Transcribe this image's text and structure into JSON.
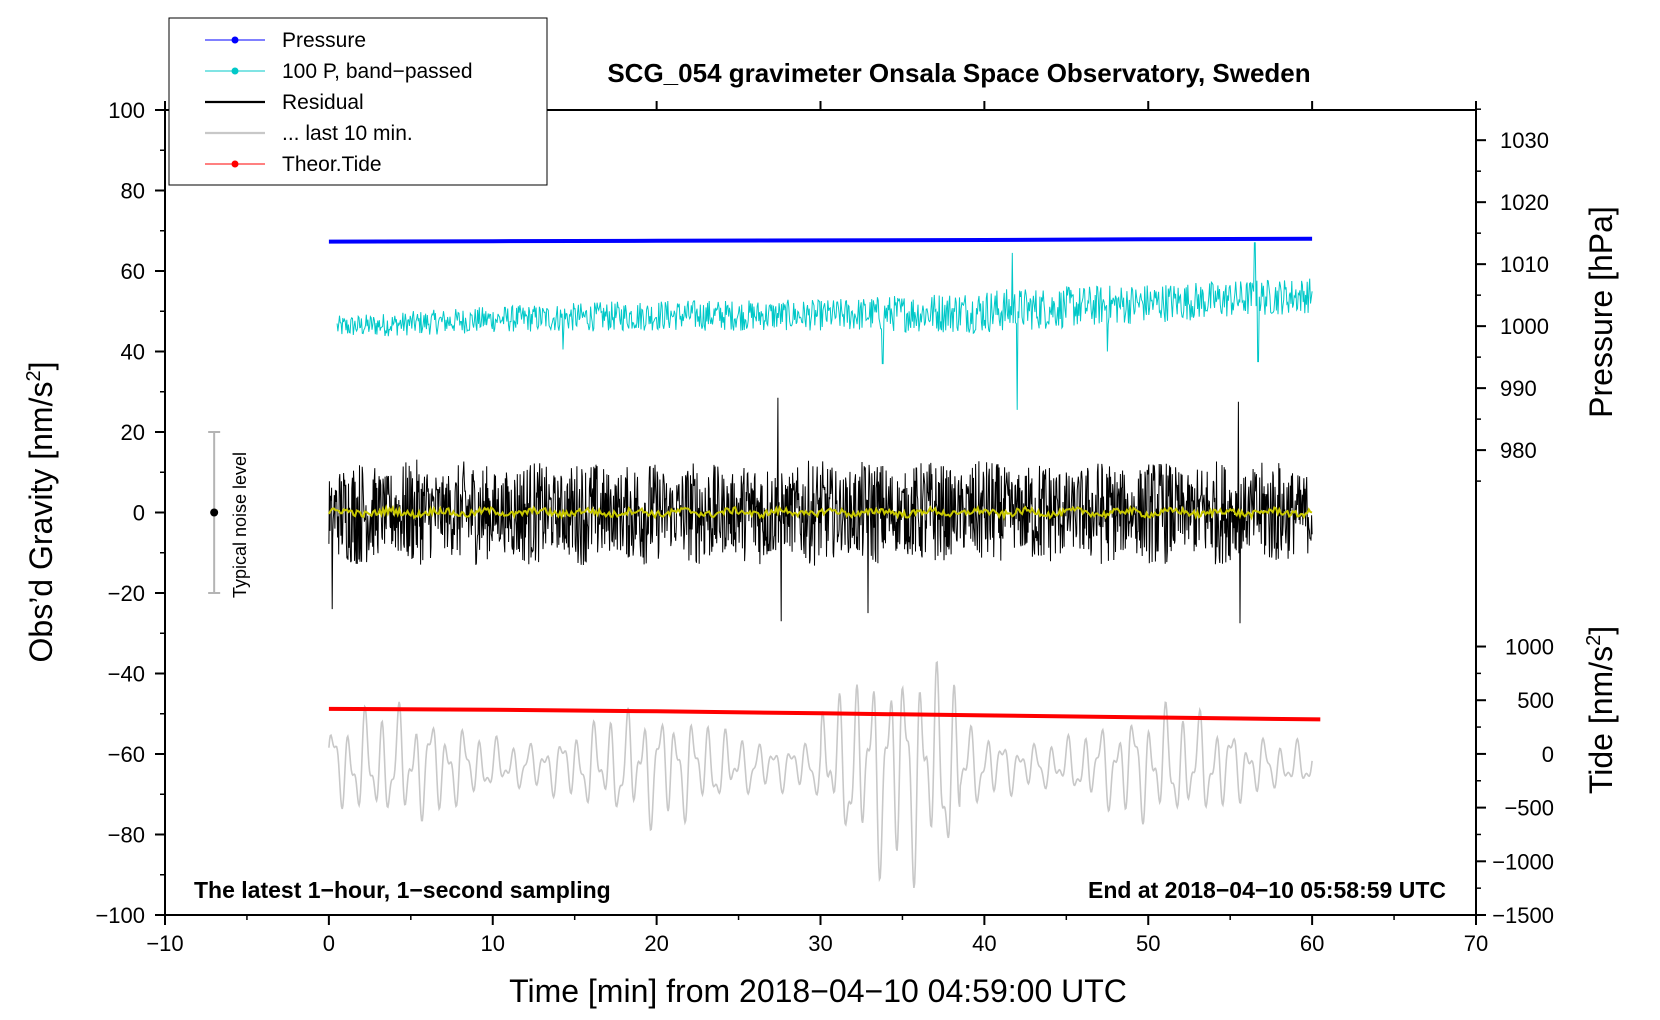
{
  "chart_data": {
    "type": "line",
    "title": "SCG_054 gravimeter Onsala Space Observatory, Sweden",
    "xlabel": "Time [min] from 2018−04−10 04:59:00 UTC",
    "ylabel_left": "Obs’d Gravity [nm/s²]",
    "ylabel_left_parts": [
      "Obs’d Gravity [nm/s",
      "2",
      "]"
    ],
    "ylabel_pressure": "Pressure [hPa]",
    "ylabel_tide_parts": [
      "Tide [nm/s",
      "2",
      "]"
    ],
    "xlim": [
      -10,
      70
    ],
    "ylim": [
      -100,
      100
    ],
    "x_ticks": [
      -10,
      0,
      10,
      20,
      30,
      40,
      50,
      60,
      70
    ],
    "x_tick_labels": [
      "−10",
      "0",
      "10",
      "20",
      "30",
      "40",
      "50",
      "60",
      "70"
    ],
    "y_ticks": [
      -100,
      -80,
      -60,
      -40,
      -20,
      0,
      20,
      40,
      60,
      80,
      100
    ],
    "y_tick_labels": [
      "−100",
      "−80",
      "−60",
      "−40",
      "−20",
      "0",
      "20",
      "40",
      "60",
      "80",
      "100"
    ],
    "pressure_axis": {
      "ticks": [
        980,
        990,
        1000,
        1010,
        1020,
        1030
      ],
      "tick_labels": [
        "980",
        "990",
        "1000",
        "1010",
        "1020",
        "1030"
      ],
      "gravity_equivalent": {
        "hpa_a": 980,
        "g_a": 15.5,
        "hpa_b": 1030,
        "g_b": 92.5
      }
    },
    "tide_axis": {
      "ticks": [
        -1500,
        -1000,
        -500,
        0,
        500,
        1000
      ],
      "tick_labels": [
        "−1500",
        "−1000",
        "−500",
        "0",
        "500",
        "1000"
      ],
      "gravity_equivalent": {
        "tide_a": -1500,
        "g_a": -100,
        "tide_b": 1000,
        "g_b": -33.3
      }
    },
    "annotations": {
      "left": "The latest 1−hour, 1−second sampling",
      "right": "End at 2018−04−10 05:58:59 UTC",
      "noise_label": "Typical noise level",
      "noise_bar": {
        "x": -7,
        "center": 0,
        "half_range": 20
      }
    },
    "legend": {
      "position": "top-left",
      "entries": [
        {
          "label": "Pressure",
          "color": "#0000ff",
          "marker": true
        },
        {
          "label": "100 P, band−passed",
          "color": "#00c8c8",
          "marker": true
        },
        {
          "label": "Residual",
          "color": "#000000",
          "marker": false
        },
        {
          "label": "... last 10 min.",
          "color": "#c8c8c8",
          "marker": false
        },
        {
          "label": "Theor.Tide",
          "color": "#ff0000",
          "marker": true
        }
      ]
    },
    "series": [
      {
        "name": "Pressure",
        "color": "#0000ff",
        "x": [
          0,
          10,
          20,
          30,
          40,
          50,
          60
        ],
        "y": [
          67.3,
          67.4,
          67.5,
          67.6,
          67.7,
          67.9,
          68.0
        ]
      },
      {
        "name": "100 P, band−passed",
        "color": "#00c8c8",
        "x": [
          0,
          10,
          20,
          30,
          40,
          50,
          60
        ],
        "y_center": [
          46,
          48,
          49,
          49,
          50,
          52,
          54
        ],
        "amplitude": [
          2.5,
          3,
          3.5,
          3.5,
          5,
          4.5,
          4
        ],
        "spikes": [
          {
            "x": 14.3,
            "y": 40.5
          },
          {
            "x": 33.8,
            "y": 37
          },
          {
            "x": 41.7,
            "y": 64.5
          },
          {
            "x": 42.0,
            "y": 25.5
          },
          {
            "x": 47.5,
            "y": 40
          },
          {
            "x": 56.5,
            "y": 67
          },
          {
            "x": 56.7,
            "y": 37.5
          }
        ]
      },
      {
        "name": "Residual",
        "color": "#000000",
        "x_range": [
          0,
          60
        ],
        "y_center": 0,
        "amplitude": 12,
        "peaks": [
          {
            "x": 27.4,
            "y": 28.5
          },
          {
            "x": 27.6,
            "y": -27
          },
          {
            "x": 55.5,
            "y": 27.5
          },
          {
            "x": 55.6,
            "y": -27.5
          },
          {
            "x": 0.2,
            "y": -24
          },
          {
            "x": 32.9,
            "y": -25
          }
        ]
      },
      {
        "name": "Smoothed residual",
        "color": "#c8c800",
        "x_range": [
          0,
          60
        ],
        "y_center": 0,
        "amplitude": 1.2
      },
      {
        "name": "... last 10 min.",
        "color": "#c8c8c8",
        "x_range": [
          0,
          60
        ],
        "y_center": -63,
        "amplitude": 14,
        "peaks": [
          {
            "x": 31.0,
            "y": -35
          },
          {
            "x": 35.3,
            "y": -35
          },
          {
            "x": 34.5,
            "y": -91
          },
          {
            "x": 37.5,
            "y": -84
          }
        ]
      },
      {
        "name": "Theor.Tide",
        "color": "#ff0000",
        "x": [
          0,
          10,
          20,
          30,
          40,
          50,
          60.5
        ],
        "y": [
          -48.8,
          -49.0,
          -49.4,
          -49.9,
          -50.4,
          -50.9,
          -51.4
        ]
      }
    ]
  }
}
